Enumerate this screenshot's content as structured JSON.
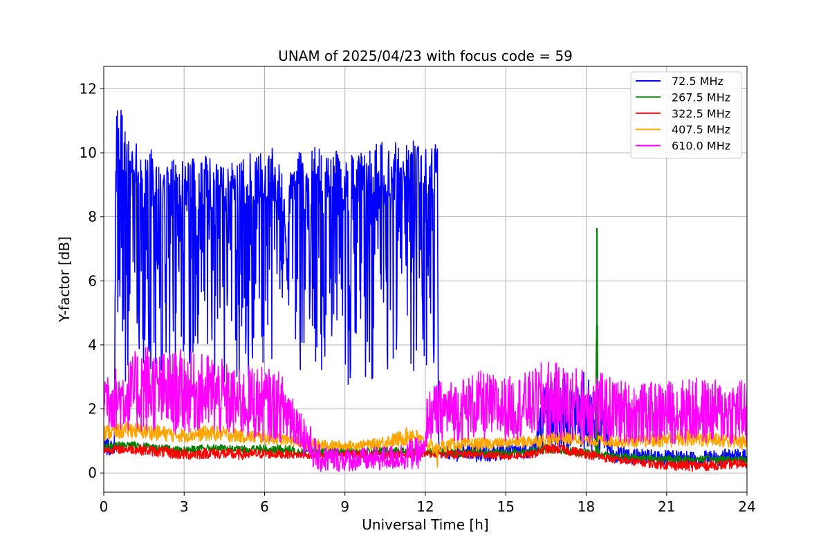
{
  "chart_data": {
    "type": "line",
    "title": "UNAM of 2025/04/23 with focus code = 59",
    "xlabel": "Universal Time [h]",
    "ylabel": "Y-factor [dB]",
    "xlim": [
      0,
      24
    ],
    "ylim": [
      -0.6,
      12.7
    ],
    "xticks": [
      0,
      3,
      6,
      9,
      12,
      15,
      18,
      21,
      24
    ],
    "yticks": [
      0,
      2,
      4,
      6,
      8,
      10,
      12
    ],
    "grid": true,
    "legend_position": "top-right",
    "series": [
      {
        "name": " 72.5 MHz",
        "color": "#0000ff",
        "x": [
          0.0,
          0.4,
          0.45,
          0.5,
          0.7,
          1.0,
          1.5,
          2.0,
          2.5,
          3.0,
          3.5,
          4.0,
          4.5,
          5.0,
          5.5,
          6.0,
          6.5,
          6.7,
          6.8,
          7.0,
          7.2,
          7.5,
          8.0,
          8.5,
          9.0,
          9.5,
          10.0,
          10.5,
          11.0,
          11.5,
          12.0,
          12.3,
          12.45,
          12.5,
          13.0,
          14.0,
          15.0,
          16.0,
          16.5,
          17.0,
          17.5,
          18.0,
          18.5,
          19.0,
          19.5,
          20.0,
          21.0,
          22.0,
          23.0,
          24.0
        ],
        "y_max": [
          1.1,
          1.0,
          11.9,
          12.1,
          11.3,
          10.5,
          10.2,
          10.0,
          9.8,
          9.8,
          9.9,
          9.9,
          9.8,
          9.7,
          10.0,
          10.1,
          10.2,
          9.5,
          7.5,
          10.2,
          10.0,
          10.1,
          10.2,
          10.2,
          10.3,
          10.3,
          10.3,
          10.4,
          10.3,
          10.4,
          10.4,
          10.3,
          10.3,
          0.9,
          0.9,
          0.95,
          0.95,
          0.95,
          3.2,
          3.1,
          3.1,
          3.2,
          3.1,
          0.85,
          0.8,
          0.75,
          0.7,
          0.7,
          0.75,
          0.75
        ],
        "y_min": [
          0.5,
          0.6,
          0.8,
          2.0,
          2.8,
          3.0,
          3.1,
          3.0,
          2.9,
          3.0,
          3.1,
          2.9,
          2.8,
          2.8,
          2.7,
          2.9,
          3.2,
          3.5,
          6.1,
          3.0,
          3.2,
          3.1,
          3.0,
          2.8,
          2.7,
          2.8,
          2.9,
          3.0,
          3.0,
          3.0,
          3.1,
          3.3,
          3.5,
          0.5,
          0.35,
          0.35,
          0.4,
          0.45,
          0.6,
          0.6,
          0.6,
          0.6,
          0.55,
          0.3,
          0.3,
          0.25,
          0.2,
          0.15,
          0.2,
          0.3
        ]
      },
      {
        "name": "267.5 MHz",
        "color": "#008000",
        "x": [
          0.0,
          1.0,
          2.0,
          3.0,
          4.0,
          5.0,
          6.0,
          7.0,
          7.5,
          8.0,
          9.0,
          10.0,
          11.0,
          12.0,
          13.0,
          14.0,
          15.0,
          16.0,
          16.5,
          17.0,
          18.0,
          18.35,
          18.4,
          18.45,
          18.5,
          19.0,
          20.0,
          21.0,
          22.0,
          23.0,
          24.0
        ],
        "y_max": [
          0.95,
          1.0,
          0.9,
          0.85,
          0.9,
          0.85,
          0.9,
          0.85,
          0.8,
          0.8,
          0.8,
          0.8,
          0.8,
          0.8,
          0.75,
          0.75,
          0.75,
          0.8,
          0.9,
          0.85,
          0.75,
          0.7,
          7.65,
          0.7,
          0.7,
          0.65,
          0.6,
          0.55,
          0.55,
          0.55,
          0.55
        ],
        "y_min": [
          0.7,
          0.75,
          0.65,
          0.6,
          0.65,
          0.6,
          0.6,
          0.55,
          0.55,
          0.55,
          0.55,
          0.55,
          0.55,
          0.55,
          0.5,
          0.5,
          0.5,
          0.55,
          0.6,
          0.6,
          0.5,
          0.45,
          0.5,
          0.45,
          0.45,
          0.4,
          0.35,
          0.3,
          0.3,
          0.3,
          0.3
        ]
      },
      {
        "name": "322.5 MHz",
        "color": "#ff0000",
        "x": [
          0.0,
          1.0,
          2.0,
          3.0,
          4.0,
          5.0,
          6.0,
          7.0,
          7.5,
          8.0,
          9.0,
          10.0,
          11.0,
          12.0,
          13.0,
          14.0,
          15.0,
          16.0,
          16.5,
          17.0,
          18.0,
          19.0,
          20.0,
          21.0,
          22.0,
          23.0,
          24.0
        ],
        "y_max": [
          0.85,
          0.9,
          0.85,
          0.75,
          0.8,
          0.75,
          0.75,
          0.7,
          0.65,
          0.65,
          0.7,
          0.7,
          0.7,
          0.7,
          0.7,
          0.7,
          0.65,
          0.7,
          0.9,
          0.9,
          0.75,
          0.55,
          0.45,
          0.4,
          0.4,
          0.4,
          0.45
        ],
        "y_min": [
          0.6,
          0.6,
          0.5,
          0.4,
          0.45,
          0.4,
          0.45,
          0.45,
          0.45,
          0.45,
          0.45,
          0.45,
          0.45,
          0.5,
          0.45,
          0.45,
          0.4,
          0.45,
          0.6,
          0.6,
          0.45,
          0.3,
          0.2,
          0.1,
          0.05,
          0.1,
          0.15
        ]
      },
      {
        "name": "407.5 MHz",
        "color": "#ffa500",
        "x": [
          0.0,
          1.0,
          2.0,
          3.0,
          4.0,
          5.0,
          6.0,
          7.0,
          7.5,
          8.0,
          9.0,
          10.0,
          11.0,
          11.5,
          12.0,
          12.4,
          12.45,
          12.5,
          13.0,
          14.0,
          15.0,
          16.0,
          17.0,
          18.0,
          19.0,
          20.0,
          21.0,
          22.0,
          23.0,
          24.0
        ],
        "y_max": [
          1.5,
          1.6,
          1.5,
          1.4,
          1.5,
          1.4,
          1.3,
          1.2,
          1.1,
          1.05,
          1.0,
          1.05,
          1.3,
          1.5,
          1.1,
          1.0,
          0.9,
          1.0,
          1.1,
          1.1,
          1.1,
          1.2,
          1.3,
          1.2,
          1.2,
          1.2,
          1.3,
          1.4,
          1.3,
          1.2
        ],
        "y_min": [
          1.0,
          1.1,
          1.0,
          0.95,
          1.0,
          0.95,
          0.9,
          0.85,
          0.75,
          0.7,
          0.7,
          0.75,
          0.8,
          0.9,
          0.8,
          0.5,
          0.0,
          0.6,
          0.7,
          0.7,
          0.8,
          0.8,
          0.9,
          0.85,
          0.8,
          0.8,
          0.8,
          0.8,
          0.8,
          0.7
        ]
      },
      {
        "name": "610.0 MHz",
        "color": "#ff00ff",
        "x": [
          0.0,
          0.5,
          1.0,
          1.5,
          2.0,
          2.5,
          3.0,
          3.5,
          4.0,
          4.5,
          5.0,
          5.5,
          6.0,
          6.5,
          7.0,
          7.3,
          7.5,
          8.0,
          9.0,
          10.0,
          11.0,
          11.5,
          12.0,
          12.05,
          12.5,
          13.0,
          14.0,
          15.0,
          16.0,
          16.5,
          17.0,
          18.0,
          19.0,
          20.0,
          21.0,
          22.0,
          23.0,
          24.0
        ],
        "y_max": [
          3.5,
          3.3,
          3.6,
          4.2,
          3.8,
          3.8,
          3.9,
          3.7,
          3.8,
          3.5,
          3.2,
          3.4,
          3.3,
          3.2,
          2.8,
          2.0,
          1.9,
          0.9,
          0.8,
          0.8,
          0.9,
          1.1,
          1.1,
          2.5,
          2.9,
          2.9,
          3.2,
          3.0,
          3.2,
          3.6,
          3.4,
          3.3,
          3.0,
          2.8,
          2.9,
          3.0,
          2.9,
          3.0
        ],
        "y_min": [
          1.4,
          1.3,
          1.3,
          1.2,
          1.3,
          1.2,
          1.2,
          1.3,
          1.2,
          1.1,
          1.1,
          1.0,
          1.0,
          1.0,
          0.8,
          0.9,
          0.4,
          0.0,
          0.05,
          0.05,
          0.1,
          0.1,
          0.2,
          1.0,
          1.0,
          1.0,
          1.0,
          1.0,
          1.1,
          1.0,
          1.0,
          0.9,
          0.9,
          0.9,
          0.9,
          0.9,
          0.9,
          0.8
        ]
      }
    ]
  }
}
